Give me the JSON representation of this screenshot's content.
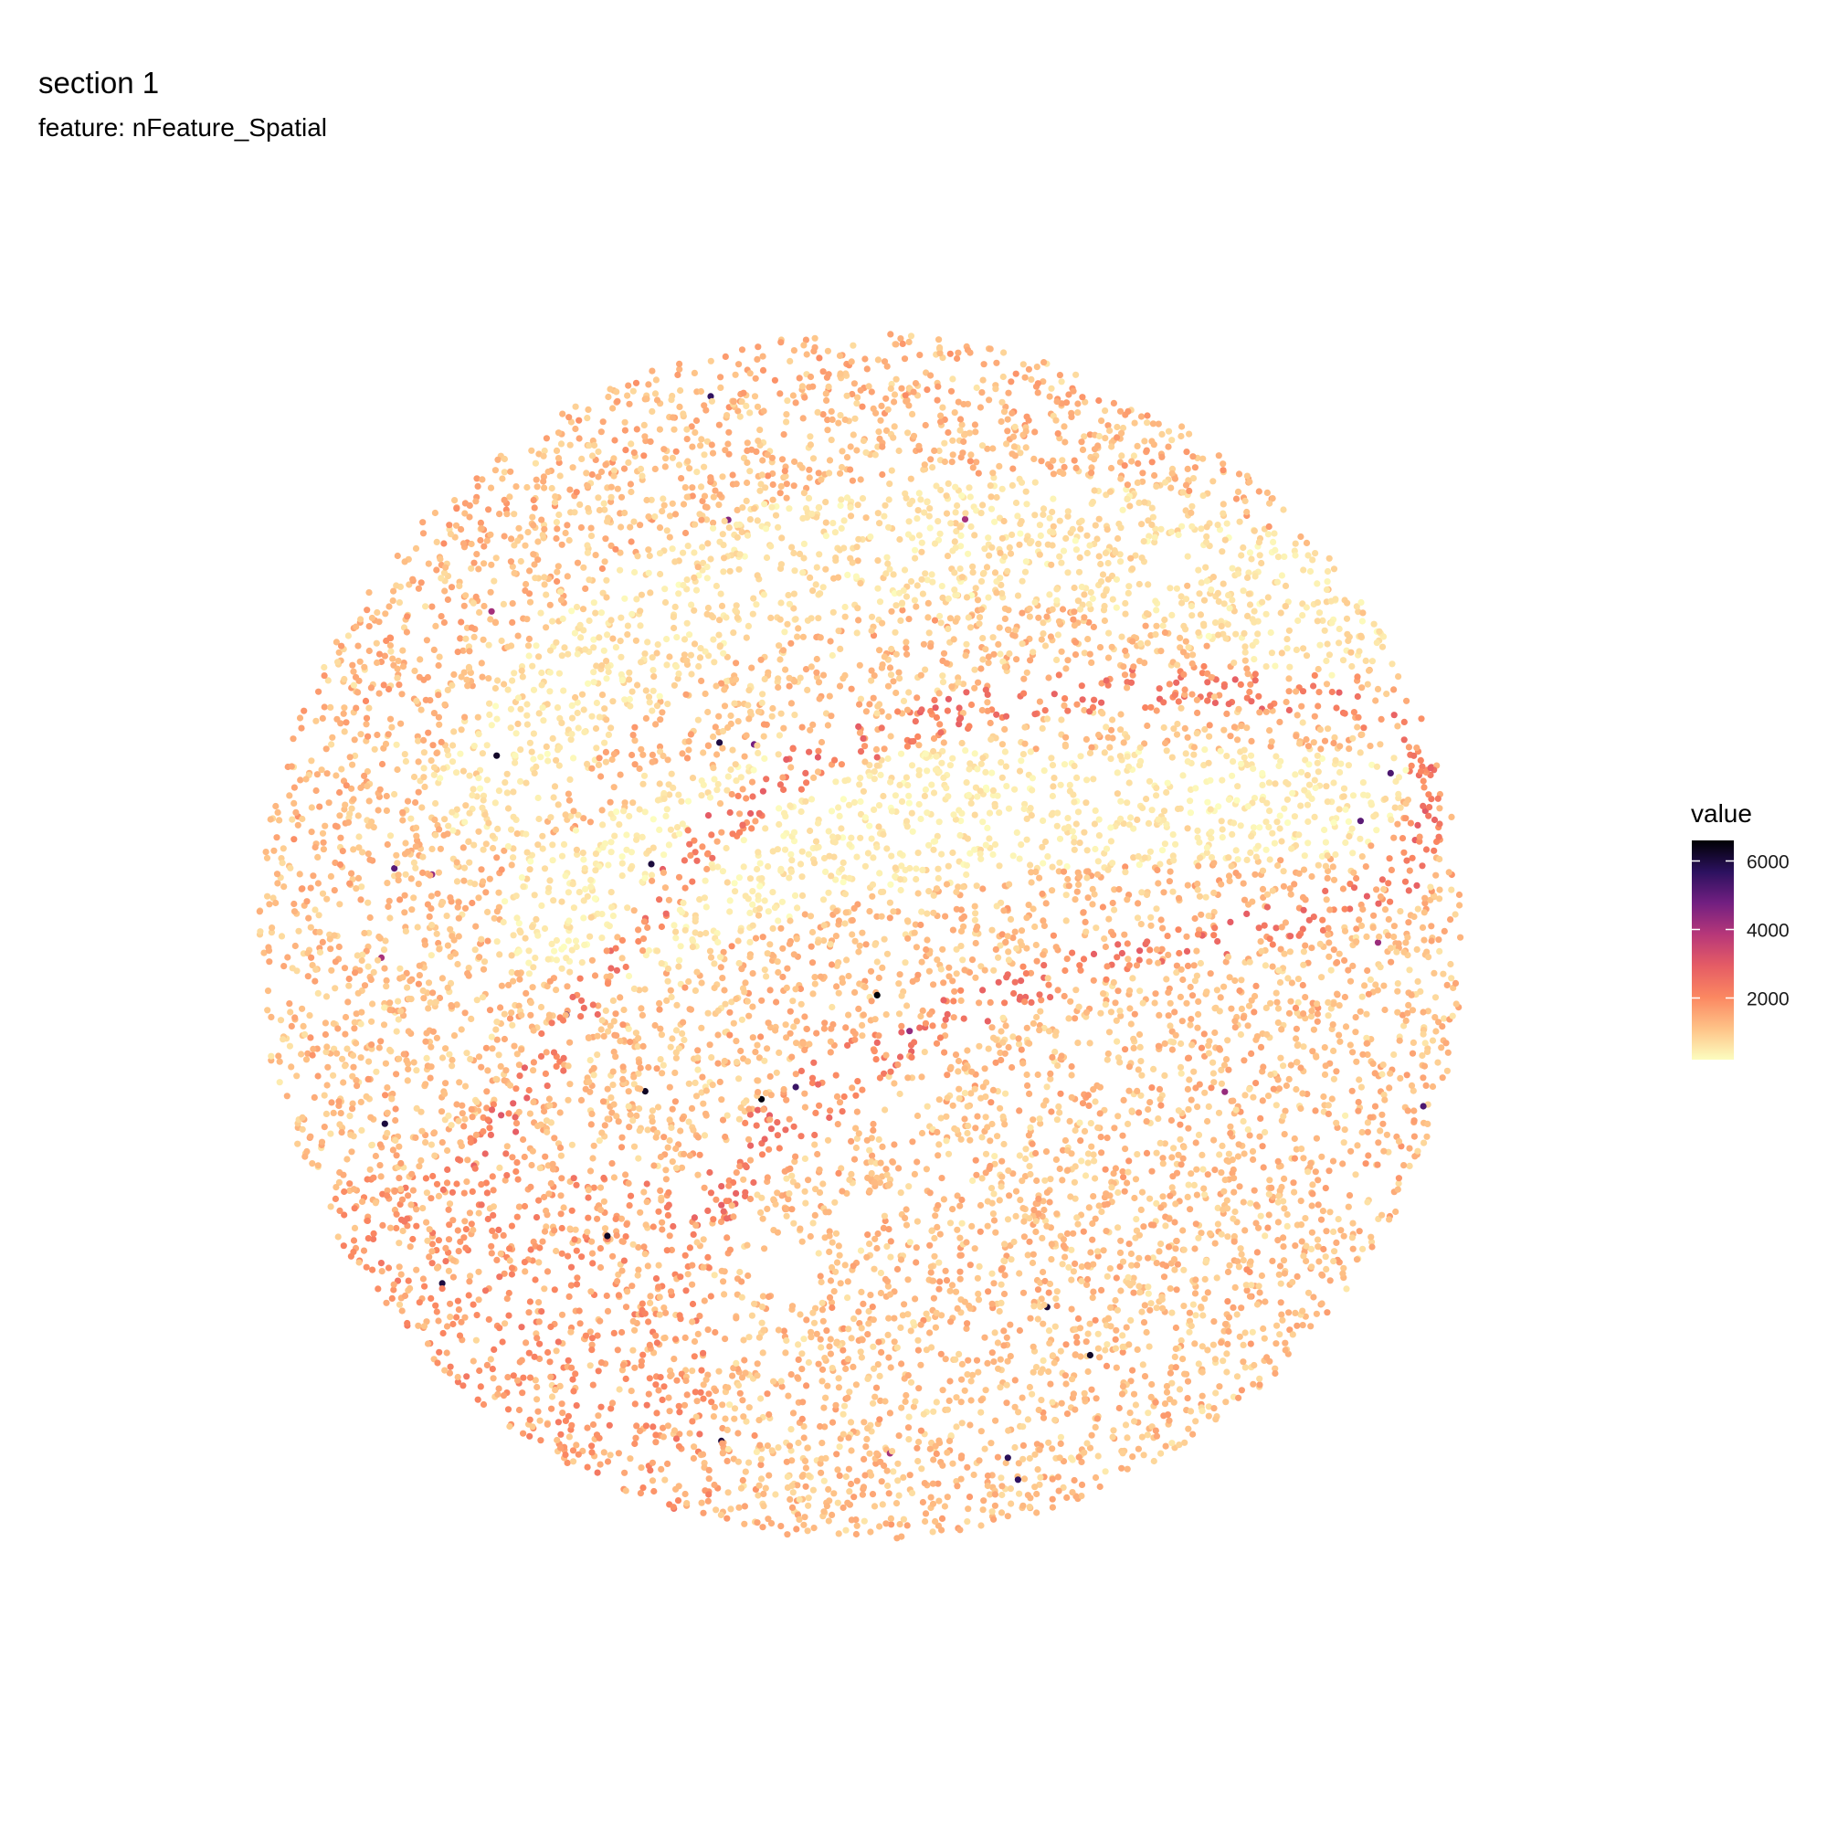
{
  "chart_data": {
    "type": "scatter",
    "title": "section 1",
    "subtitle": "feature:  nFeature_Spatial",
    "xlabel": "",
    "ylabel": "",
    "grid": false,
    "legend": {
      "title": "value",
      "position": "right",
      "range": [
        200,
        6600
      ],
      "ticks": [
        2000,
        4000,
        6000
      ],
      "tick_labels": [
        "2000",
        "4000",
        "6000"
      ],
      "palette": [
        "#fcfdbf",
        "#fec287",
        "#fb8761",
        "#e55c65",
        "#b73779",
        "#721f81",
        "#2c115f",
        "#000004"
      ]
    },
    "x_range": [
      0,
      1
    ],
    "y_range": [
      0,
      1
    ],
    "regions": [
      {
        "label": "outer ring",
        "typical_value": 1250
      },
      {
        "label": "upper band",
        "typical_value": 650
      },
      {
        "label": "upper cell layer (arc)",
        "typical_value": 2000
      },
      {
        "label": "inner region",
        "typical_value": 500
      },
      {
        "label": "lower cell layer (arc)",
        "typical_value": 1900
      },
      {
        "label": "lower-left dense region",
        "typical_value": 1600
      },
      {
        "label": "lower region",
        "typical_value": 1150
      }
    ],
    "max_value_observed": 6600
  }
}
